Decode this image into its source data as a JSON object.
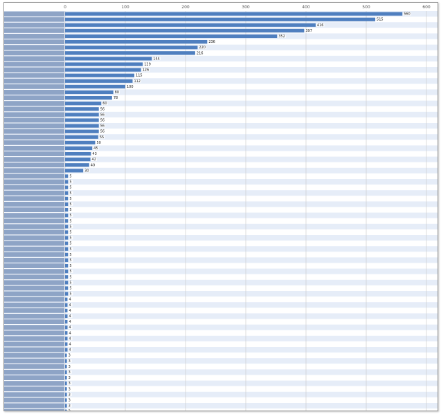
{
  "colors": {
    "bar": "#4f7fbf",
    "bar_label_bg": "#ffffff",
    "row_odd": "#e6edf8",
    "row_even": "#ffffff",
    "label_panel": "#8ea4c6",
    "grid": "#c8c8c8"
  },
  "chart_data": {
    "type": "bar",
    "orientation": "horizontal",
    "title": "",
    "xlabel": "",
    "ylabel": "",
    "xlim": [
      0,
      600
    ],
    "xticks": [
      "0",
      "100",
      "200",
      "300",
      "400",
      "500",
      "600"
    ],
    "grid": true,
    "values": [
      560,
      515,
      416,
      397,
      352,
      236,
      220,
      216,
      144,
      129,
      126,
      115,
      112,
      100,
      80,
      78,
      60,
      56,
      56,
      56,
      56,
      56,
      55,
      50,
      45,
      43,
      42,
      40,
      30,
      5,
      5,
      5,
      5,
      5,
      5,
      5,
      5,
      5,
      5,
      5,
      5,
      5,
      5,
      5,
      5,
      5,
      5,
      5,
      5,
      5,
      5,
      4,
      4,
      4,
      4,
      4,
      4,
      4,
      4,
      4,
      4,
      3,
      3,
      3,
      3,
      3,
      3,
      3,
      3,
      3,
      3,
      3
    ],
    "bar_labels": [
      "560",
      "515",
      "416",
      "397",
      "352",
      "236",
      "220",
      "216",
      "144",
      "129",
      "126",
      "115",
      "112",
      "100",
      "80",
      "78",
      "60",
      "56",
      "56",
      "56",
      "56",
      "56",
      "55",
      "50",
      "45",
      "43",
      "42",
      "40",
      "30",
      "5",
      "5",
      "5",
      "5",
      "5",
      "5",
      "5",
      "5",
      "5",
      "5",
      "5",
      "5",
      "5",
      "5",
      "5",
      "5",
      "5",
      "5",
      "5",
      "5",
      "5",
      "5",
      "4",
      "4",
      "4",
      "4",
      "4",
      "4",
      "4",
      "4",
      "4",
      "4",
      "3",
      "3",
      "3",
      "3",
      "3",
      "3",
      "3",
      "3",
      "3",
      "3",
      "3"
    ],
    "categories": [
      "",
      "",
      "",
      "",
      "",
      "",
      "",
      "",
      "",
      "",
      "",
      "",
      "",
      "",
      "",
      "",
      "",
      "",
      "",
      "",
      "",
      "",
      "",
      "",
      "",
      "",
      "",
      "",
      "",
      "",
      "",
      "",
      "",
      "",
      "",
      "",
      "",
      "",
      "",
      "",
      "",
      "",
      "",
      "",
      "",
      "",
      "",
      "",
      "",
      "",
      "",
      "",
      "",
      "",
      "",
      "",
      "",
      "",
      "",
      "",
      "",
      "",
      "",
      "",
      "",
      "",
      "",
      "",
      "",
      "",
      "",
      ""
    ],
    "row_values": [
      "",
      "",
      "",
      "",
      "",
      "",
      "",
      "",
      "",
      "",
      "",
      "",
      "",
      "",
      "",
      "",
      "",
      "",
      "",
      "",
      "",
      "",
      "",
      "",
      "",
      "",
      "",
      "",
      "",
      "",
      "",
      "",
      "",
      "",
      "",
      "",
      "",
      "",
      "",
      "",
      "",
      "",
      "",
      "",
      "",
      "",
      "",
      "",
      "",
      "",
      "",
      "",
      "",
      "",
      "",
      "",
      "",
      "",
      "",
      "",
      "",
      "",
      "",
      "",
      "",
      "",
      "",
      "",
      "",
      "",
      "",
      ""
    ]
  }
}
